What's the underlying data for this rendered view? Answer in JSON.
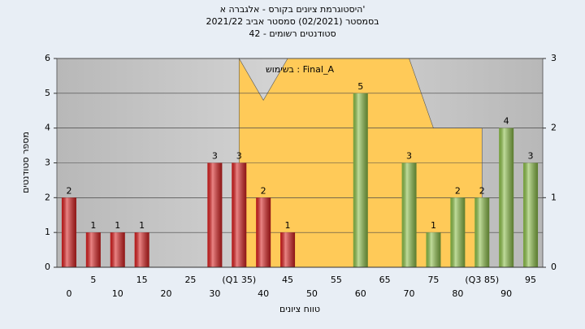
{
  "chart_data": {
    "type": "bar",
    "title": [
      "היסטוגרמת ציונים בקורס - אלגברה א'",
      "בסמסטר  (02/2021)  סמסטר אביב 2021/22",
      "סטודנטים רשומים - 42"
    ],
    "annotation": "בשימוש : Final_A",
    "xlabel": "טווח ציונים",
    "ylabel": "מספר סטודנטים",
    "categories": [
      "0",
      "5",
      "10",
      "15",
      "20",
      "25",
      "30",
      "(Q1 35)",
      "40",
      "45",
      "50",
      "55",
      "60",
      "65",
      "70",
      "75",
      "80",
      "(Q3 85)",
      "90",
      "95"
    ],
    "values": [
      2,
      1,
      1,
      1,
      0,
      0,
      3,
      3,
      2,
      1,
      0,
      0,
      5,
      0,
      3,
      1,
      2,
      2,
      4,
      3
    ],
    "colors": [
      "#d92020",
      "#d92020",
      "#d92020",
      "#d92020",
      "#d92020",
      "#d92020",
      "#d92020",
      "#d92020",
      "#d92020",
      "#d92020",
      "#8cbf48",
      "#8cbf48",
      "#8cbf48",
      "#8cbf48",
      "#8cbf48",
      "#8cbf48",
      "#8cbf48",
      "#8cbf48",
      "#8cbf48",
      "#8cbf48"
    ],
    "area": {
      "x": [
        35,
        35,
        40,
        45,
        70,
        75,
        85,
        85
      ],
      "values": [
        0,
        3,
        2.4,
        3,
        3,
        2,
        2,
        0
      ],
      "color": "#ffca58",
      "axis": "y2"
    },
    "ylim": [
      0,
      6
    ],
    "yticks": [
      0,
      1,
      2,
      3,
      4,
      5,
      6
    ],
    "y2lim": [
      0,
      3
    ],
    "y2ticks": [
      0,
      1,
      2,
      3
    ],
    "grid": true
  }
}
